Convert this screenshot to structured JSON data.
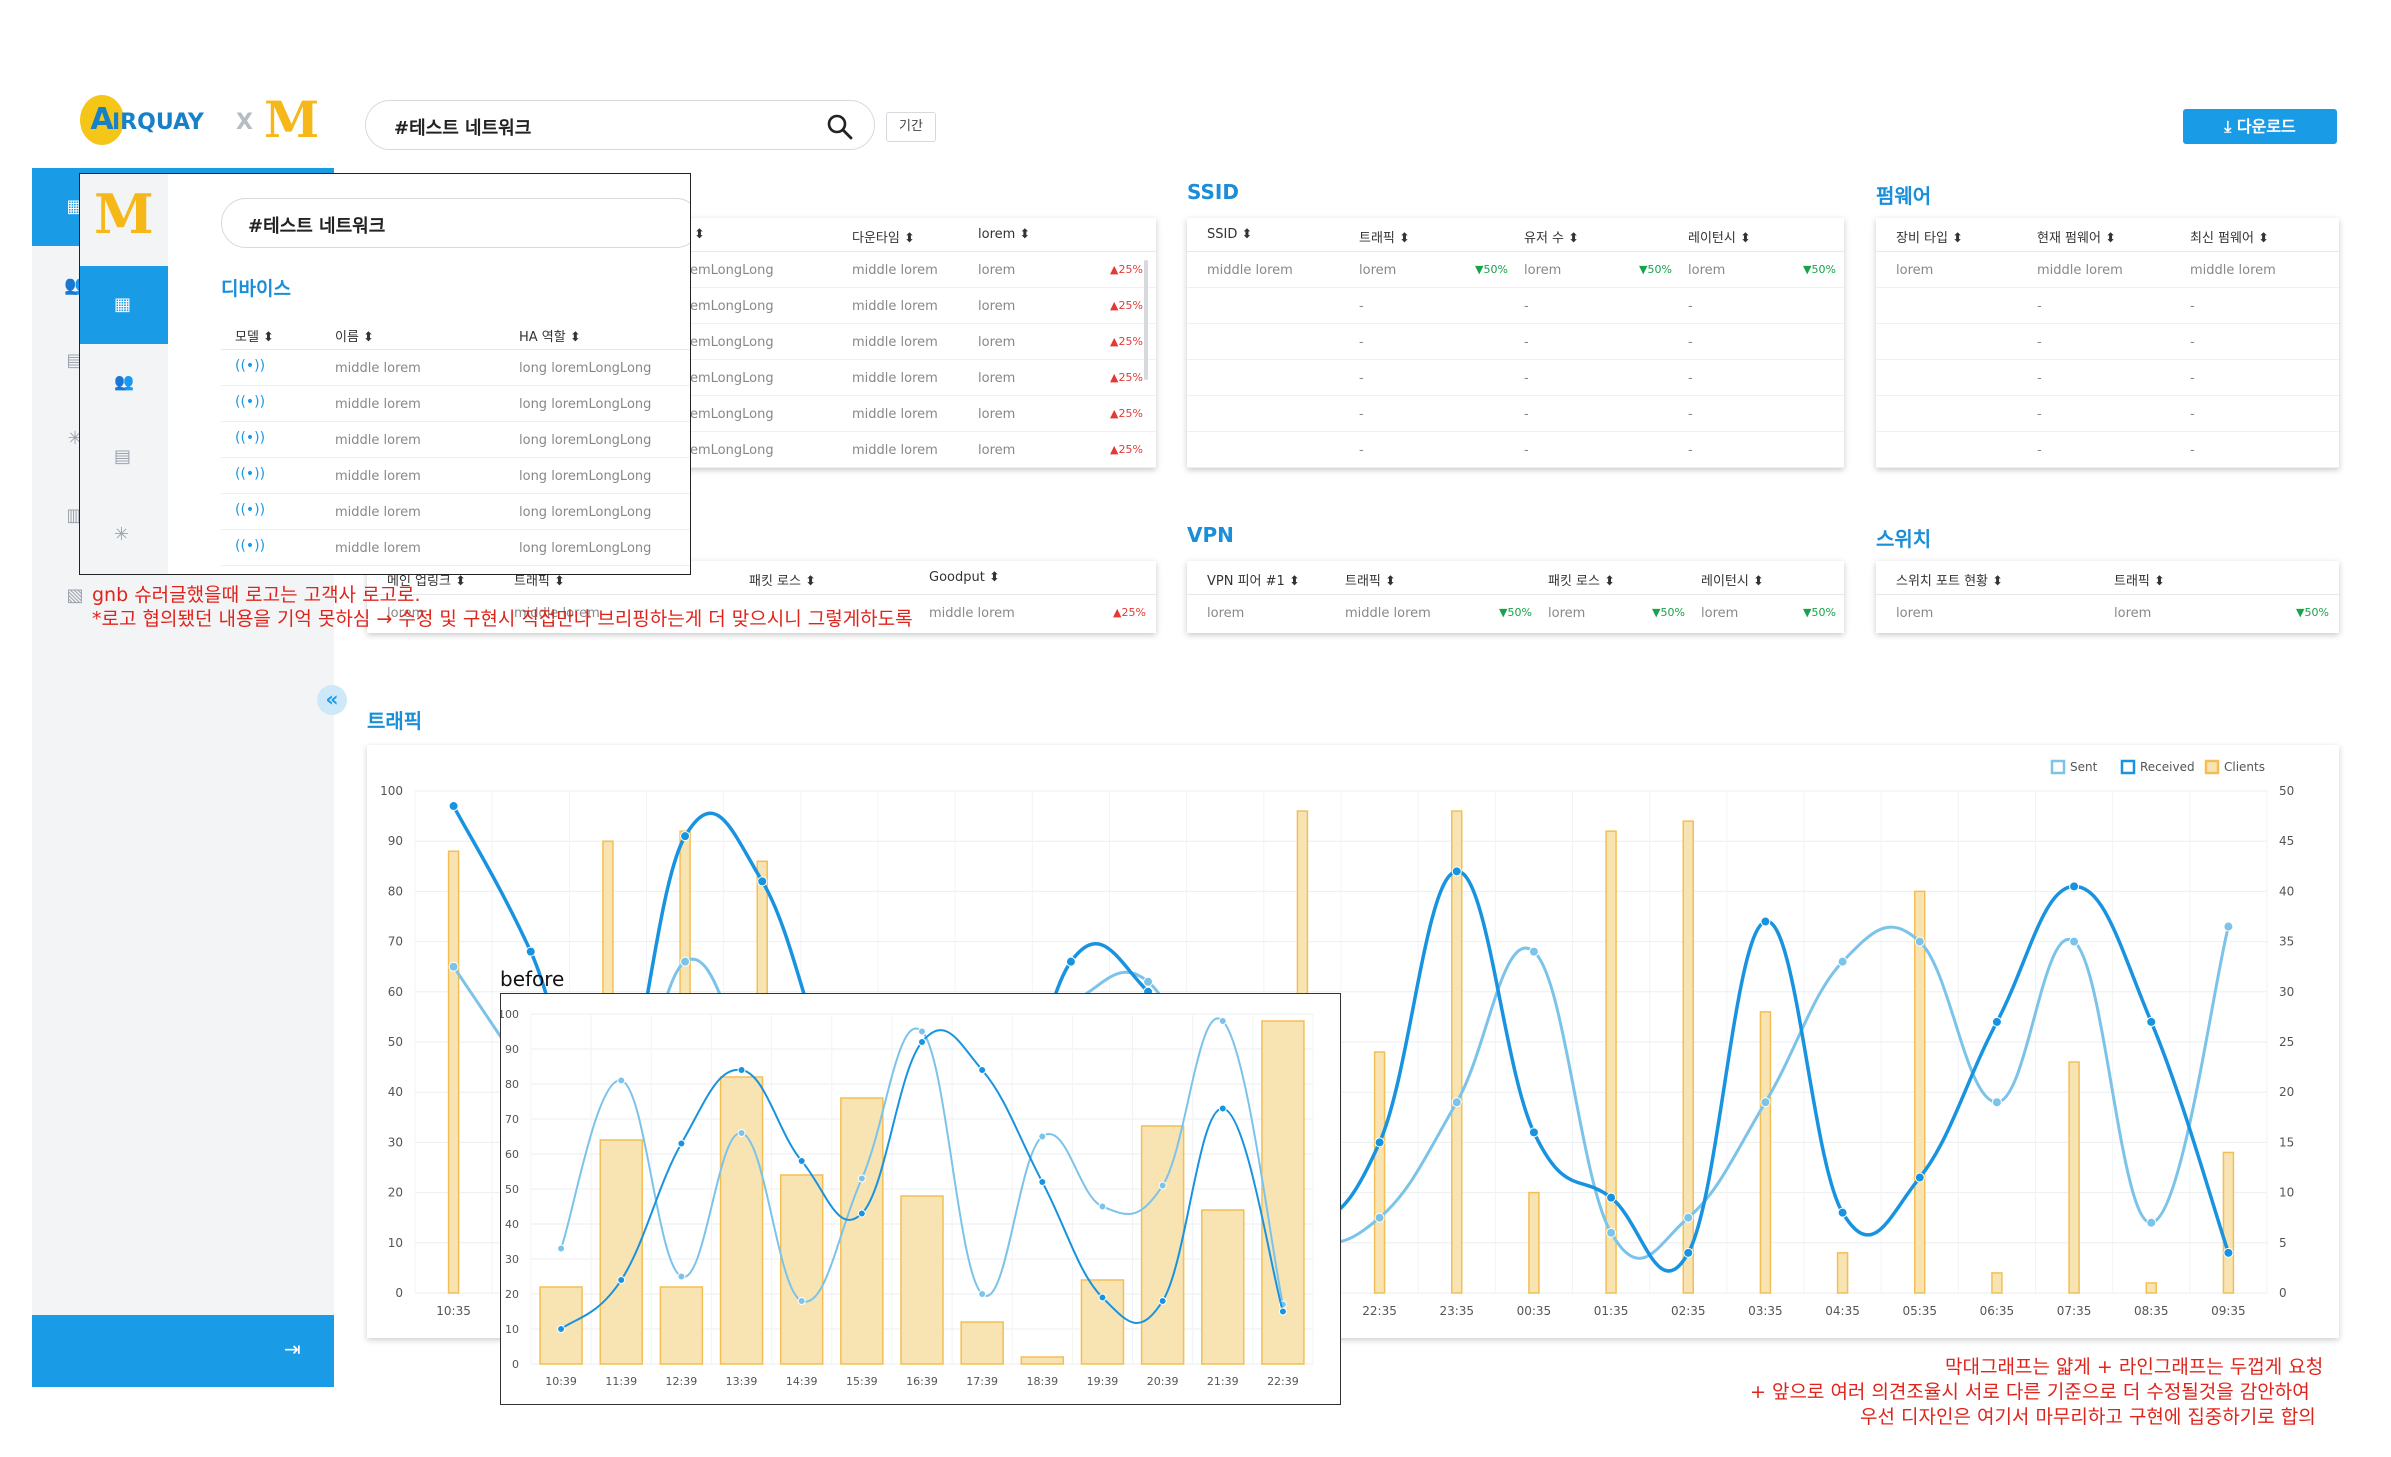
{
  "brand": {
    "logo_main": "IRQUAY",
    "logo_a": "A",
    "logo_x": "X",
    "partner_logo": "M"
  },
  "header": {
    "search_value": "#테스트 네트워크",
    "period_label": "기간",
    "download_label": "다운로드"
  },
  "overlay": {
    "search_value": "#테스트 네트워크",
    "section_title": "디바이스",
    "columns": [
      "모델 ⬍",
      "이름 ⬍",
      "HA 역할 ⬍"
    ],
    "rows": [
      {
        "name": "middle lorem",
        "role": "long loremLongLong"
      },
      {
        "name": "middle lorem",
        "role": "long loremLongLong"
      },
      {
        "name": "middle lorem",
        "role": "long loremLongLong"
      },
      {
        "name": "middle lorem",
        "role": "long loremLongLong"
      },
      {
        "name": "middle lorem",
        "role": "long loremLongLong"
      },
      {
        "name": "middle lorem",
        "role": "long loremLongLong"
      }
    ]
  },
  "device_table": {
    "columns": [
      "⬍",
      "다운타임 ⬍",
      "lorem ⬍"
    ],
    "rows": [
      {
        "c1": "emLongLong",
        "c2": "middle lorem",
        "c3": "lorem",
        "delta": "▲25%"
      },
      {
        "c1": "emLongLong",
        "c2": "middle lorem",
        "c3": "lorem",
        "delta": "▲25%"
      },
      {
        "c1": "emLongLong",
        "c2": "middle lorem",
        "c3": "lorem",
        "delta": "▲25%"
      },
      {
        "c1": "emLongLong",
        "c2": "middle lorem",
        "c3": "lorem",
        "delta": "▲25%"
      },
      {
        "c1": "emLongLong",
        "c2": "middle lorem",
        "c3": "lorem",
        "delta": "▲25%"
      },
      {
        "c1": "emLongLong",
        "c2": "middle lorem",
        "c3": "lorem",
        "delta": "▲25%"
      }
    ]
  },
  "ssid": {
    "title": "SSID",
    "columns": [
      "SSID ⬍",
      "트래픽 ⬍",
      "유저 수 ⬍",
      "레이턴시 ⬍"
    ],
    "first_row": {
      "ssid": "middle lorem",
      "traffic": "lorem",
      "traffic_delta": "▼50%",
      "users": "lorem",
      "users_delta": "▼50%",
      "latency": "lorem",
      "latency_delta": "▼50%"
    },
    "empty": "-"
  },
  "firmware": {
    "title": "펌웨어",
    "columns": [
      "장비 타입 ⬍",
      "현재 펌웨어 ⬍",
      "최신 펌웨어 ⬍"
    ],
    "first_row": {
      "type": "lorem",
      "current": "middle lorem",
      "latest": "middle lorem"
    },
    "empty": "-"
  },
  "uplink": {
    "columns": [
      "메인 업링크 ⬍",
      "트래픽 ⬍",
      "패킷 로스 ⬍",
      "Goodput ⬍"
    ],
    "row": {
      "c1": "lorem",
      "c2": "middle lorem",
      "c4": "middle lorem",
      "delta": "▲25%"
    }
  },
  "vpn": {
    "title": "VPN",
    "columns": [
      "VPN 피어 #1 ⬍",
      "트래픽 ⬍",
      "패킷 로스 ⬍",
      "레이턴시 ⬍"
    ],
    "row": {
      "peer": "lorem",
      "traffic": "middle lorem",
      "traffic_delta": "▼50%",
      "loss": "lorem",
      "loss_delta": "▼50%",
      "latency": "lorem",
      "latency_delta": "▼50%"
    }
  },
  "switch": {
    "title": "스위치",
    "columns": [
      "스위치 포트 현황 ⬍",
      "트래픽 ⬍"
    ],
    "row": {
      "port": "lorem",
      "traffic": "lorem",
      "delta": "▼50%"
    }
  },
  "notes": {
    "logo_note_1": "gnb 슈러글했을때 로고는 고객사 로고로.",
    "logo_note_2": "*로고 협의됐던 내용을 기억 못하심 → 수정 및 구현시 직접만나 브리핑하는게 더 맞으시니 그렇게하도록",
    "chart_note_1": "막대그래프는 얇게 + 라인그래프는 두껍게 요청",
    "chart_note_2": "+ 앞으로 여러 의견조율시 서로 다른 기준으로 더 수정될것을 감안하여",
    "chart_note_3": "우선 디자인은 여기서 마무리하고 구현에 집중하기로 합의"
  },
  "traffic_title": "트래픽",
  "before_label": "before",
  "colors": {
    "accent": "#1a9be6",
    "sent": "#7cc3ea",
    "received": "#1893e0",
    "clients_fill": "#f8e3b3",
    "clients_stroke": "#f3bf54",
    "up": "#e53935",
    "down": "#17a34a",
    "note": "#e0241b"
  },
  "chart_data": [
    {
      "type": "bar+line",
      "title": "트래픽",
      "legend": [
        "Sent",
        "Received",
        "Clients"
      ],
      "legend_position": "top-right",
      "y_left": {
        "min": 0,
        "max": 100,
        "ticks": [
          0,
          10,
          20,
          30,
          40,
          50,
          60,
          70,
          80,
          90,
          100
        ]
      },
      "y_right": {
        "min": 0,
        "max": 50,
        "ticks": [
          0,
          5,
          10,
          15,
          20,
          25,
          30,
          35,
          40,
          45,
          50
        ]
      },
      "categories": [
        "10:35",
        "11:35",
        "12:35",
        "13:35",
        "14:35",
        "15:35",
        "16:35",
        "17:35",
        "18:35",
        "19:35",
        "20:35",
        "21:35",
        "22:35",
        "23:35",
        "00:35",
        "01:35",
        "02:35",
        "03:35",
        "04:35",
        "05:35",
        "06:35",
        "07:35",
        "08:35",
        "09:35"
      ],
      "series": [
        {
          "name": "Sent",
          "axis": "left",
          "values": [
            65,
            42,
            18,
            66,
            38,
            12,
            30,
            50,
            58,
            62,
            32,
            12,
            15,
            38,
            68,
            12,
            15,
            38,
            66,
            70,
            38,
            70,
            14,
            73
          ]
        },
        {
          "name": "Received",
          "axis": "left",
          "values": [
            97,
            68,
            30,
            91,
            82,
            40,
            22,
            18,
            66,
            60,
            35,
            15,
            30,
            84,
            32,
            19,
            8,
            74,
            16,
            23,
            54,
            81,
            54,
            8
          ]
        },
        {
          "name": "Clients",
          "axis": "right",
          "values": [
            44,
            20,
            45,
            46,
            43,
            20,
            16,
            8,
            20,
            15,
            12,
            48,
            24,
            48,
            10,
            46,
            47,
            28,
            4,
            40,
            2,
            23,
            1,
            14
          ]
        }
      ]
    },
    {
      "type": "bar+line",
      "title": "before",
      "y_left": {
        "min": 0,
        "max": 100,
        "ticks": [
          0,
          10,
          20,
          30,
          40,
          50,
          60,
          70,
          80,
          90,
          100
        ]
      },
      "categories": [
        "10:39",
        "11:39",
        "12:39",
        "13:39",
        "14:39",
        "15:39",
        "16:39",
        "17:39",
        "18:39",
        "19:39",
        "20:39",
        "21:39",
        "22:39"
      ],
      "series": [
        {
          "name": "Sent",
          "values": [
            33,
            81,
            25,
            66,
            18,
            53,
            95,
            20,
            65,
            45,
            51,
            98,
            17
          ]
        },
        {
          "name": "Received",
          "values": [
            10,
            24,
            63,
            84,
            58,
            43,
            92,
            84,
            52,
            19,
            18,
            73,
            15
          ]
        },
        {
          "name": "Clients",
          "values": [
            22,
            64,
            22,
            82,
            54,
            76,
            48,
            12,
            2,
            24,
            68,
            44,
            98
          ]
        }
      ]
    }
  ]
}
